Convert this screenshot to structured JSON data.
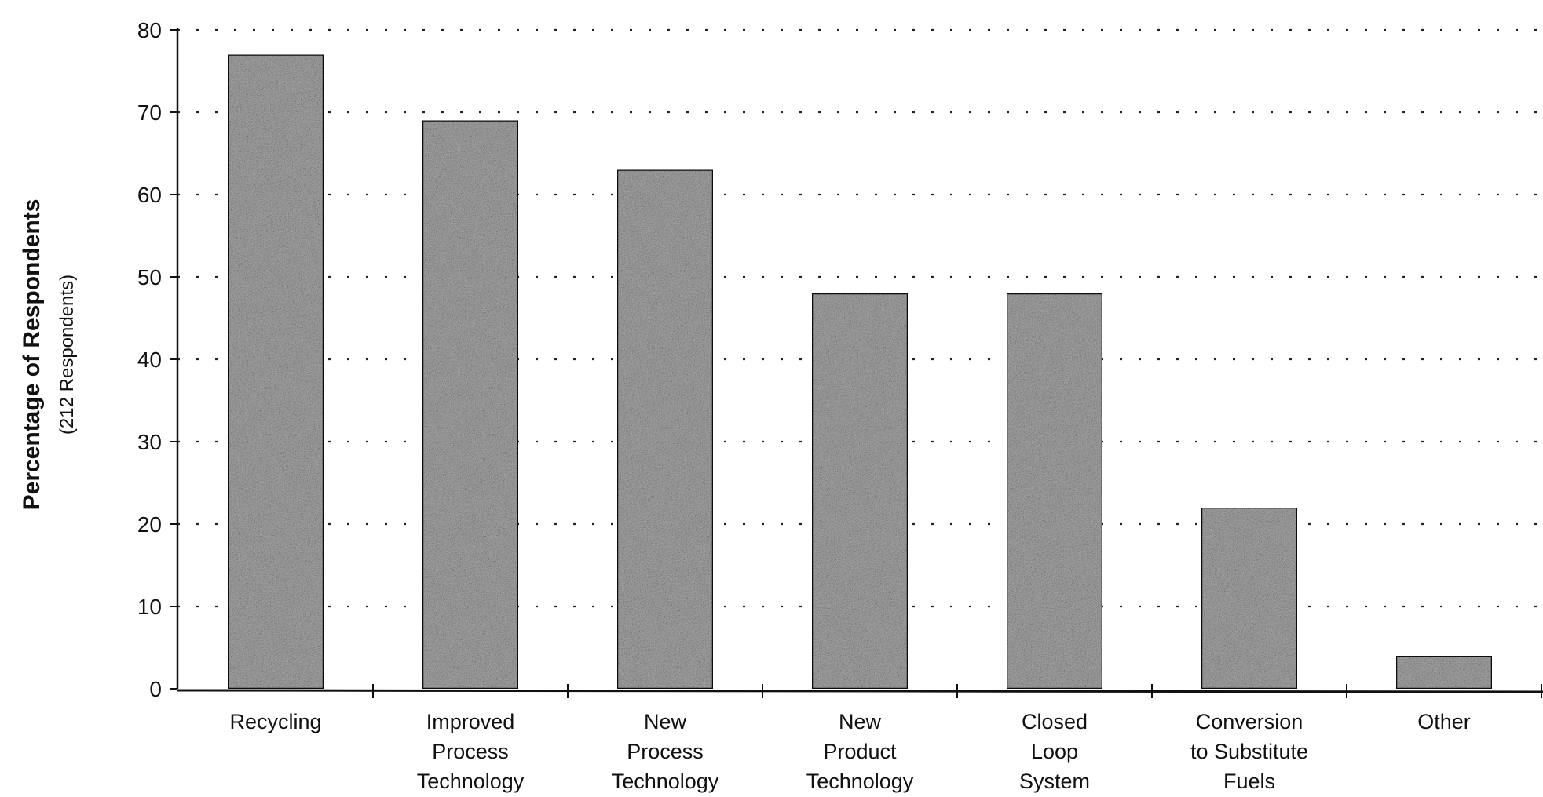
{
  "chart_data": {
    "type": "bar",
    "title": "",
    "ylabel": "Percentage of Respondents",
    "ylabel_sub": "(212 Respondents)",
    "xlabel": "",
    "ylim": [
      0,
      80
    ],
    "yticks": [
      0,
      10,
      20,
      30,
      40,
      50,
      60,
      70,
      80
    ],
    "grid": "dotted horizontal",
    "categories": [
      "Recycling",
      "Improved Process Technology",
      "New Process Technology",
      "New Product Technology",
      "Closed Loop System",
      "Conversion to Substitute Fuels",
      "Other"
    ],
    "category_lines": [
      [
        "Recycling"
      ],
      [
        "Improved",
        "Process",
        "Technology"
      ],
      [
        "New",
        "Process",
        "Technology"
      ],
      [
        "New",
        "Product",
        "Technology"
      ],
      [
        "Closed",
        "Loop",
        "System"
      ],
      [
        "Conversion",
        "to Substitute",
        "Fuels"
      ],
      [
        "Other"
      ]
    ],
    "values": [
      77,
      69,
      63,
      48,
      48,
      22,
      4
    ],
    "colors": {
      "bar_fill": "#a9a9a9",
      "bar_stroke": "#111111",
      "axis": "#111111",
      "grid": "#222222"
    }
  }
}
